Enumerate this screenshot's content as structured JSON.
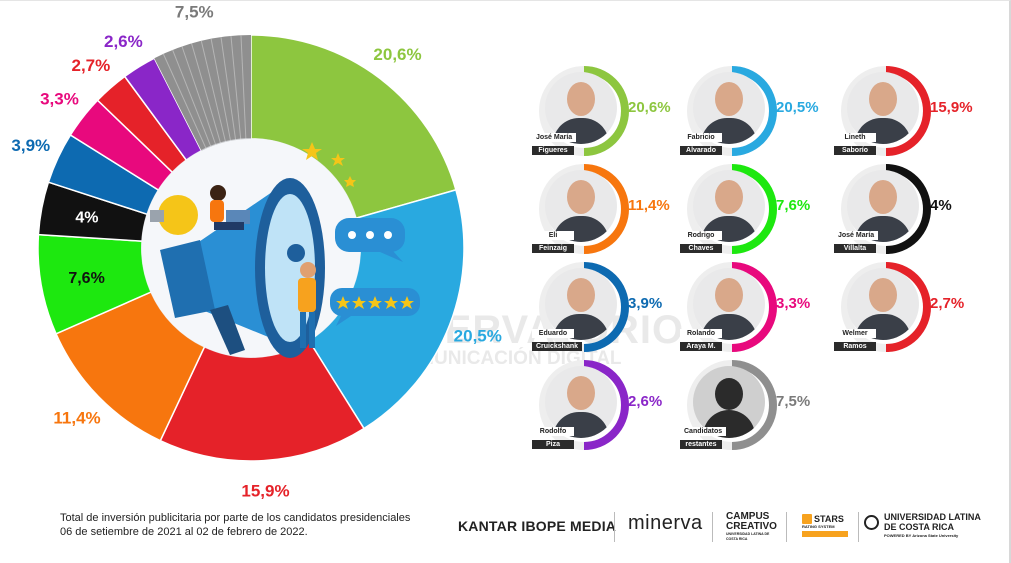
{
  "chart_data": {
    "type": "pie",
    "donut": true,
    "title": "",
    "slices": [
      {
        "label": "José María Figueres",
        "value": 20.6,
        "display": "20,6%",
        "color": "#8dc63f"
      },
      {
        "label": "Fabricio Alvarado",
        "value": 20.5,
        "display": "20,5%",
        "color": "#29a9e0"
      },
      {
        "label": "Lineth Saborío",
        "value": 15.9,
        "display": "15,9%",
        "color": "#e52229"
      },
      {
        "label": "Eli Feinzaig",
        "value": 11.4,
        "display": "11,4%",
        "color": "#f7760e"
      },
      {
        "label": "Rodrigo Chaves",
        "value": 7.6,
        "display": "7,6%",
        "color": "#1de80f"
      },
      {
        "label": "José María Villalta",
        "value": 4.0,
        "display": "4%",
        "color": "#111111"
      },
      {
        "label": "Eduardo Cruickshank",
        "value": 3.9,
        "display": "3,9%",
        "color": "#0d6ab1"
      },
      {
        "label": "Rolando Araya M.",
        "value": 3.3,
        "display": "3,3%",
        "color": "#e8097d"
      },
      {
        "label": "Welmer Ramos",
        "value": 2.7,
        "display": "2,7%",
        "color": "#e52229"
      },
      {
        "label": "Rodolfo Piza",
        "value": 2.6,
        "display": "2,6%",
        "color": "#8a26c8"
      },
      {
        "label": "Candidatos restantes",
        "value": 7.5,
        "display": "7,5%",
        "color": "#8f8f8f"
      }
    ]
  },
  "candidates": [
    {
      "first": "José María",
      "last": "Figueres",
      "pct": "20,6%",
      "value": 20.6,
      "color": "#8dc63f"
    },
    {
      "first": "Fabricio",
      "last": "Alvarado",
      "pct": "20,5%",
      "value": 20.5,
      "color": "#29a9e0"
    },
    {
      "first": "Lineth",
      "last": "Saborío",
      "pct": "15,9%",
      "value": 15.9,
      "color": "#e52229"
    },
    {
      "first": "Eli",
      "last": "Feinzaig",
      "pct": "11,4%",
      "value": 11.4,
      "color": "#f7760e"
    },
    {
      "first": "Rodrigo",
      "last": "Chaves",
      "pct": "7,6%",
      "value": 7.6,
      "color": "#1de80f"
    },
    {
      "first": "José María",
      "last": "Villalta",
      "pct": "4%",
      "value": 4.0,
      "color": "#111111"
    },
    {
      "first": "Eduardo",
      "last": "Cruickshank",
      "pct": "3,9%",
      "value": 3.9,
      "color": "#0d6ab1"
    },
    {
      "first": "Rolando",
      "last": "Araya M.",
      "pct": "3,3%",
      "value": 3.3,
      "color": "#e8097d"
    },
    {
      "first": "Welmer",
      "last": "Ramos",
      "pct": "2,7%",
      "value": 2.7,
      "color": "#e52229"
    },
    {
      "first": "Rodolfo",
      "last": "Piza",
      "pct": "2,6%",
      "value": 2.6,
      "color": "#8a26c8"
    },
    {
      "first": "Candidatos",
      "last": "restantes",
      "pct": "7,5%",
      "value": 7.5,
      "color": "#8f8f8f"
    }
  ],
  "watermark": {
    "line1": "OBSERVATORIO",
    "line2": "DE COMUNICACIÓN DIGITAL"
  },
  "footer": {
    "line1": "Total de inversión publicitaria por parte de los candidatos presidenciales",
    "line2": "06 de setiembre de 2021 al 02 de febrero de 2022."
  },
  "logos": {
    "kantar": "KANTAR IBOPE MEDIA",
    "minerva": "minerva",
    "campus1": "CAMPUS",
    "campus2": "CREATIVO",
    "campus_sub": "UNIVERSIDAD LATINA DE COSTA RICA",
    "stars": "STARS",
    "stars_sub": "RATING SYSTEM",
    "ulatina1": "UNIVERSIDAD LATINA",
    "ulatina2": "DE COSTA RICA",
    "ulatina_sub": "POWERED BY Arizona State University"
  }
}
